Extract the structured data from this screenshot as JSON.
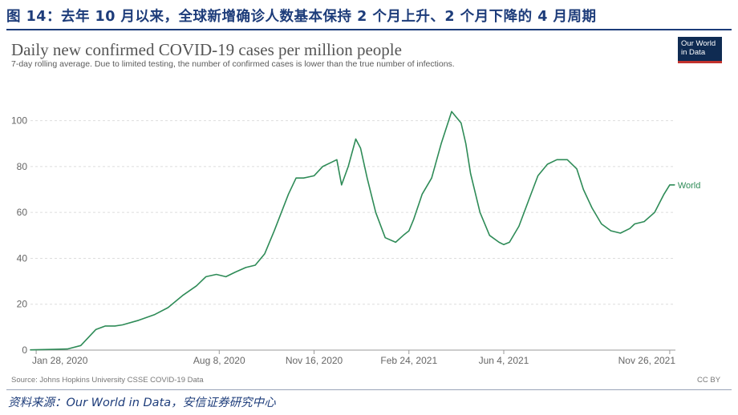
{
  "figure": {
    "title": "图 14：去年 10 月以来，全球新增确诊人数基本保持 2 个月上升、2 个月下降的 4 月周期",
    "source_note": "资料来源：Our World in Data，安信证券研究中心"
  },
  "logo": {
    "line1": "Our World",
    "line2": "in Data"
  },
  "colors": {
    "series": "#2e8b57",
    "title": "#1d3c7a",
    "logo_bg": "#0f2b52",
    "logo_accent": "#c2322d",
    "grid": "#dddddd"
  },
  "chart_data": {
    "type": "line",
    "title": "Daily new confirmed COVID-19 cases per million people",
    "subtitle": "7-day rolling average. Due to limited testing, the number of confirmed cases is lower than the true number of infections.",
    "source": "Source: Johns Hopkins University CSSE COVID-19 Data",
    "license": "CC BY",
    "xlabel": "",
    "ylabel": "",
    "x_range": [
      "2020-01-22",
      "2021-12-02"
    ],
    "ylim": [
      0,
      110
    ],
    "y_ticks": [
      0,
      20,
      40,
      60,
      80,
      100
    ],
    "x_tick_labels": [
      {
        "date": "2020-01-28",
        "label": "Jan 28, 2020"
      },
      {
        "date": "2020-08-08",
        "label": "Aug 8, 2020"
      },
      {
        "date": "2020-11-16",
        "label": "Nov 16, 2020"
      },
      {
        "date": "2021-02-24",
        "label": "Feb 24, 2021"
      },
      {
        "date": "2021-06-04",
        "label": "Jun 4, 2021"
      },
      {
        "date": "2021-11-26",
        "label": "Nov 26, 2021"
      }
    ],
    "grid": true,
    "series": [
      {
        "name": "World",
        "x": [
          "2020-01-22",
          "2020-02-15",
          "2020-03-01",
          "2020-03-15",
          "2020-03-31",
          "2020-04-10",
          "2020-04-20",
          "2020-04-28",
          "2020-05-15",
          "2020-06-01",
          "2020-06-15",
          "2020-07-01",
          "2020-07-15",
          "2020-07-25",
          "2020-08-05",
          "2020-08-15",
          "2020-08-25",
          "2020-09-05",
          "2020-09-15",
          "2020-09-25",
          "2020-10-05",
          "2020-10-20",
          "2020-10-28",
          "2020-11-05",
          "2020-11-16",
          "2020-11-25",
          "2020-12-05",
          "2020-12-10",
          "2020-12-15",
          "2020-12-22",
          "2020-12-30",
          "2021-01-04",
          "2021-01-11",
          "2021-01-20",
          "2021-01-30",
          "2021-02-10",
          "2021-02-18",
          "2021-02-24",
          "2021-03-01",
          "2021-03-10",
          "2021-03-20",
          "2021-03-30",
          "2021-04-10",
          "2021-04-20",
          "2021-04-25",
          "2021-04-30",
          "2021-05-10",
          "2021-05-20",
          "2021-05-30",
          "2021-06-04",
          "2021-06-10",
          "2021-06-20",
          "2021-06-30",
          "2021-07-10",
          "2021-07-20",
          "2021-07-30",
          "2021-08-10",
          "2021-08-20",
          "2021-08-27",
          "2021-09-05",
          "2021-09-15",
          "2021-09-25",
          "2021-10-05",
          "2021-10-15",
          "2021-10-20",
          "2021-10-30",
          "2021-11-10",
          "2021-11-20",
          "2021-11-26",
          "2021-12-01"
        ],
        "values": [
          0.1,
          0.3,
          0.5,
          2,
          9,
          10.5,
          10.5,
          11,
          13,
          15.5,
          18.5,
          24,
          28,
          32,
          33,
          32,
          34,
          36,
          37,
          42,
          52,
          68,
          75,
          75,
          76,
          80,
          82,
          83,
          72,
          80,
          92,
          88,
          75,
          60,
          49,
          47,
          50,
          52,
          57,
          68,
          75,
          90,
          104,
          99,
          90,
          77,
          60,
          50,
          47,
          46,
          47,
          54,
          65,
          76,
          81,
          83,
          83,
          79,
          70,
          62,
          55,
          52,
          51,
          53,
          55,
          56,
          60,
          68,
          72,
          72
        ]
      }
    ]
  }
}
